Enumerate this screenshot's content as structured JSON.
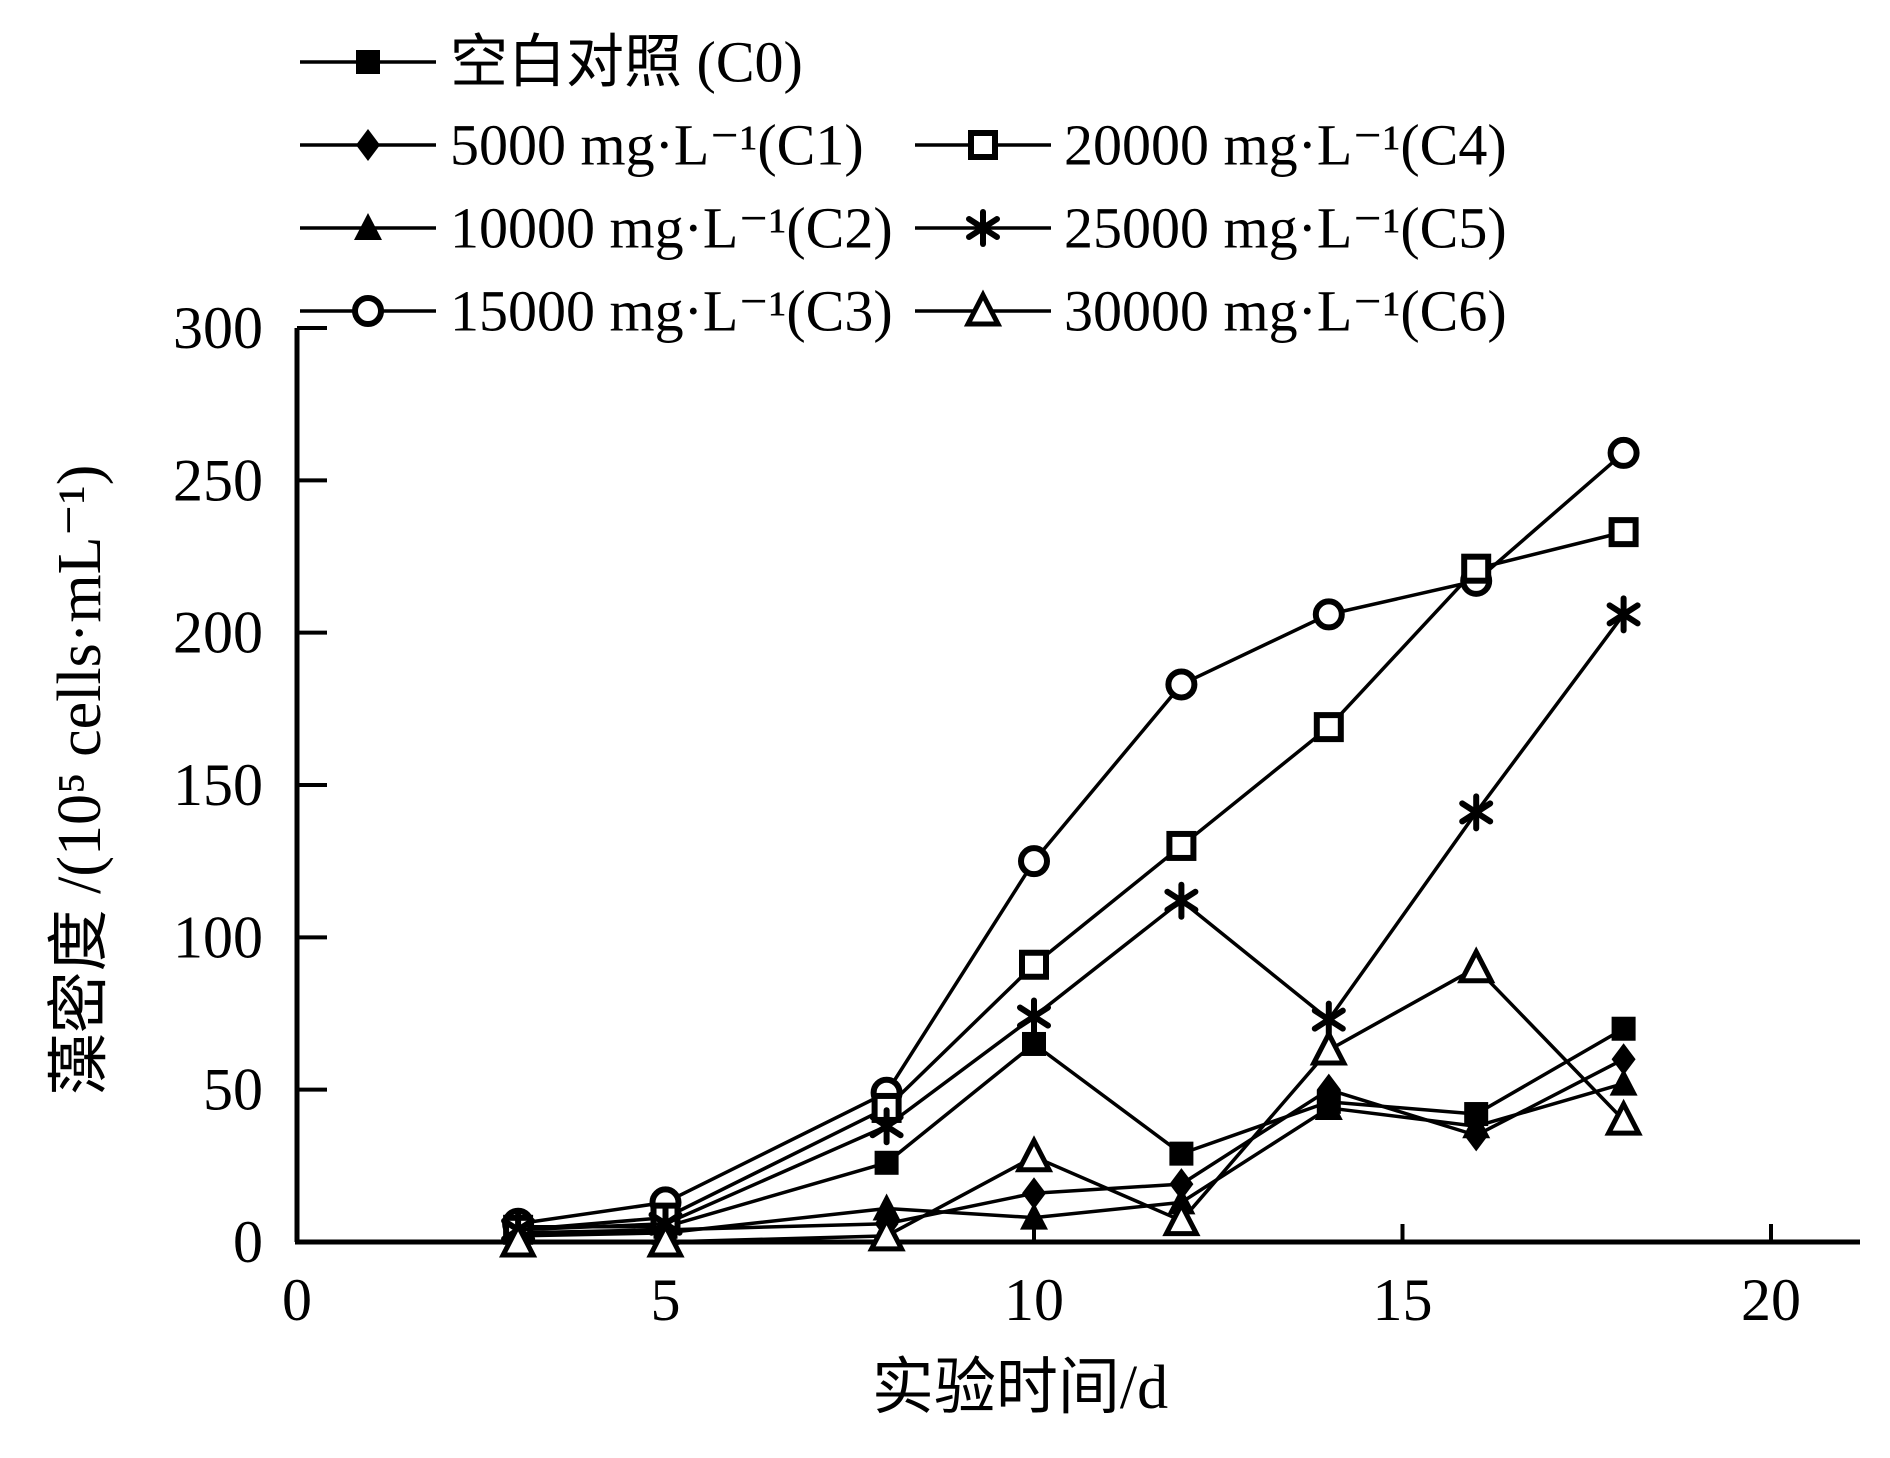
{
  "figure": {
    "background_color": "#ffffff",
    "ink_color": "#000000"
  },
  "chart_data": {
    "type": "line",
    "title": "",
    "xlabel": "实验时间/d",
    "ylabel": "藻密度 /(10⁵ cells·mL⁻¹)",
    "xlim": [
      0,
      20
    ],
    "ylim": [
      0,
      300
    ],
    "x_ticks": [
      0,
      5,
      10,
      15,
      20
    ],
    "y_ticks": [
      0,
      50,
      100,
      150,
      200,
      250,
      300
    ],
    "grid": false,
    "legend_position": "top-inside, two columns",
    "x": [
      3,
      5,
      8,
      10,
      12,
      14,
      16,
      18
    ],
    "series": [
      {
        "name": "空白对照 (C0)",
        "marker": "square-filled",
        "legend_column": 0,
        "legend_row": 0,
        "values": [
          5,
          5,
          26,
          65,
          29,
          46,
          42,
          70
        ]
      },
      {
        "name": "5000 mg·L⁻¹(C1)",
        "marker": "diamond-filled",
        "legend_column": 0,
        "legend_row": 1,
        "values": [
          3,
          4,
          6,
          16,
          19,
          50,
          35,
          60
        ]
      },
      {
        "name": "10000 mg·L⁻¹(C2)",
        "marker": "triangle-filled",
        "legend_column": 0,
        "legend_row": 2,
        "values": [
          2,
          3,
          11,
          8,
          13,
          44,
          38,
          52
        ]
      },
      {
        "name": "15000 mg·L⁻¹(C3)",
        "marker": "circle-open",
        "legend_column": 0,
        "legend_row": 3,
        "values": [
          6,
          13,
          49,
          125,
          183,
          206,
          217,
          259
        ]
      },
      {
        "name": "20000 mg·L⁻¹(C4)",
        "marker": "square-open",
        "legend_column": 1,
        "legend_row": 1,
        "values": [
          4,
          8,
          44,
          91,
          130,
          169,
          221,
          233
        ]
      },
      {
        "name": "25000 mg·L⁻¹(C5)",
        "marker": "asterisk",
        "legend_column": 1,
        "legend_row": 2,
        "values": [
          4,
          6,
          38,
          74,
          112,
          73,
          141,
          206
        ]
      },
      {
        "name": "30000 mg·L⁻¹(C6)",
        "marker": "triangle-open",
        "legend_column": 1,
        "legend_row": 3,
        "values": [
          0,
          0,
          2,
          28,
          7,
          63,
          90,
          40
        ]
      }
    ]
  }
}
